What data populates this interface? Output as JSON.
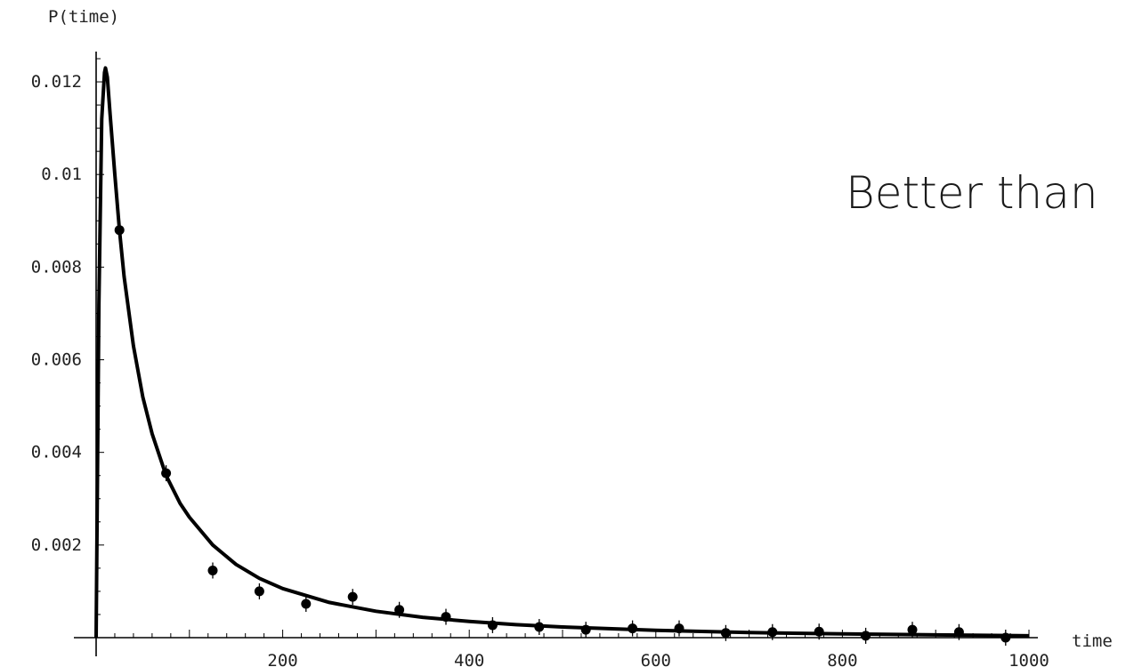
{
  "overlay_text": "Better than",
  "chart_data": {
    "type": "scatter",
    "xlabel": "time",
    "ylabel": "P(time)",
    "xlim": [
      0,
      1000
    ],
    "ylim": [
      0,
      0.0125
    ],
    "x_ticks": [
      200,
      400,
      600,
      800,
      1000
    ],
    "x_tick_labels": [
      "200",
      "400",
      "600",
      "800",
      "1000"
    ],
    "y_ticks": [
      0.002,
      0.004,
      0.006,
      0.008,
      0.01,
      0.012
    ],
    "y_tick_labels": [
      "0.002",
      "0.004",
      "0.006",
      "0.008",
      "0.01",
      "0.012"
    ],
    "grid": false,
    "series": [
      {
        "kind": "points",
        "x": [
          25,
          75,
          125,
          175,
          225,
          275,
          325,
          375,
          425,
          475,
          525,
          575,
          625,
          675,
          725,
          775,
          825,
          875,
          925,
          975
        ],
        "y": [
          0.0088,
          0.00355,
          0.00145,
          0.001,
          0.00073,
          0.00088,
          0.0006,
          0.00045,
          0.00027,
          0.00023,
          0.00017,
          0.0002,
          0.0002,
          0.0001,
          0.00012,
          0.00013,
          4e-05,
          0.00017,
          0.00012,
          0.0
        ]
      },
      {
        "kind": "curve",
        "x": [
          0,
          3,
          6,
          9,
          10,
          12,
          15,
          20,
          25,
          30,
          40,
          50,
          60,
          75,
          90,
          100,
          125,
          150,
          175,
          200,
          250,
          300,
          350,
          400,
          450,
          500,
          600,
          700,
          800,
          900,
          1000
        ],
        "y": [
          0.0,
          0.0072,
          0.0112,
          0.0122,
          0.0123,
          0.0121,
          0.0113,
          0.01,
          0.0088,
          0.0078,
          0.0063,
          0.0052,
          0.0044,
          0.0035,
          0.0029,
          0.0026,
          0.002,
          0.00158,
          0.00128,
          0.00106,
          0.00076,
          0.00057,
          0.00044,
          0.00035,
          0.00028,
          0.00023,
          0.00016,
          0.00011,
          8e-05,
          6e-05,
          4e-05
        ]
      }
    ]
  }
}
